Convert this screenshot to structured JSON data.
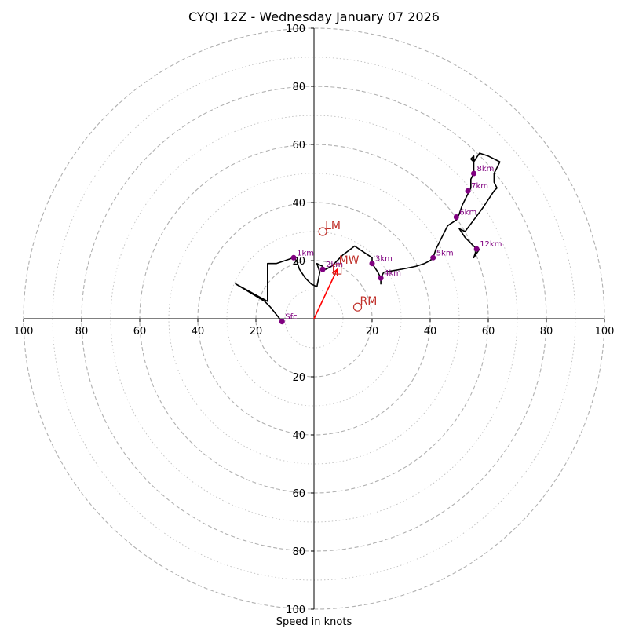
{
  "chart_data": {
    "type": "hodograph",
    "title": "CYQI 12Z - Wednesday January 07 2026",
    "xlabel": "Speed in knots",
    "units": "knots",
    "range": [
      -100,
      100
    ],
    "ring_major": [
      20,
      40,
      60,
      80,
      100
    ],
    "ring_minor": [
      10,
      30,
      50,
      70,
      90
    ],
    "x_tick_labels": [
      "100",
      "80",
      "60",
      "40",
      "20",
      "20",
      "40",
      "60",
      "80",
      "100"
    ],
    "y_tick_labels": [
      "100",
      "80",
      "60",
      "40",
      "20",
      "20",
      "40",
      "60",
      "80",
      "100"
    ],
    "trace": [
      [
        -11,
        -1
      ],
      [
        -15,
        4
      ],
      [
        -17,
        6
      ],
      [
        -27,
        12
      ],
      [
        -16,
        6
      ],
      [
        -16,
        9
      ],
      [
        -16,
        19
      ],
      [
        -15,
        19
      ],
      [
        -13,
        19
      ],
      [
        -7,
        21
      ],
      [
        -6,
        20
      ],
      [
        -5,
        17
      ],
      [
        -3,
        14
      ],
      [
        -1,
        12
      ],
      [
        1,
        11
      ],
      [
        2,
        16
      ],
      [
        1,
        19
      ],
      [
        3,
        18
      ],
      [
        3,
        17
      ],
      [
        4,
        17
      ],
      [
        6,
        18
      ],
      [
        8,
        20
      ],
      [
        10,
        22
      ],
      [
        14,
        25
      ],
      [
        17,
        23
      ],
      [
        20,
        21
      ],
      [
        20,
        19
      ],
      [
        22,
        16
      ],
      [
        23,
        14
      ],
      [
        23,
        12
      ],
      [
        23,
        14
      ],
      [
        24,
        16
      ],
      [
        30,
        17
      ],
      [
        35,
        18
      ],
      [
        38,
        19
      ],
      [
        40,
        20
      ],
      [
        41,
        21
      ],
      [
        42,
        24
      ],
      [
        44,
        28
      ],
      [
        46,
        32
      ],
      [
        49,
        34
      ],
      [
        50,
        36
      ],
      [
        51,
        39
      ],
      [
        52,
        41
      ],
      [
        53,
        43
      ],
      [
        54,
        45
      ],
      [
        54,
        48
      ],
      [
        55,
        50
      ],
      [
        55,
        52
      ],
      [
        55,
        54
      ],
      [
        54,
        55
      ],
      [
        55,
        56
      ],
      [
        55,
        54
      ],
      [
        57,
        57
      ],
      [
        60,
        56
      ],
      [
        64,
        54
      ],
      [
        63,
        52
      ],
      [
        62,
        50
      ],
      [
        62,
        47
      ],
      [
        63,
        45
      ],
      [
        62,
        44
      ],
      [
        58,
        38
      ],
      [
        55,
        34
      ],
      [
        52,
        30
      ],
      [
        50,
        31
      ],
      [
        52,
        28
      ],
      [
        54,
        26
      ],
      [
        56,
        24
      ],
      [
        55,
        21
      ],
      [
        57,
        24
      ]
    ],
    "height_markers": [
      {
        "label": "Sfc",
        "u": -11,
        "v": -1
      },
      {
        "label": "1km",
        "u": -7,
        "v": 21
      },
      {
        "label": "2km",
        "u": 3,
        "v": 17
      },
      {
        "label": "3km",
        "u": 20,
        "v": 19
      },
      {
        "label": "4km",
        "u": 23,
        "v": 14
      },
      {
        "label": "5km",
        "u": 41,
        "v": 21
      },
      {
        "label": "6km",
        "u": 49,
        "v": 35
      },
      {
        "label": "7km",
        "u": 53,
        "v": 44
      },
      {
        "label": "8km",
        "u": 55,
        "v": 50
      },
      {
        "label": "12km",
        "u": 56,
        "v": 24
      }
    ],
    "storm_motion": {
      "LM": {
        "label": "LM",
        "u": 3,
        "v": 30
      },
      "RM": {
        "label": "RM",
        "u": 15,
        "v": 4
      },
      "MW": {
        "label": "MW",
        "u": 8,
        "v": 17
      }
    },
    "colors": {
      "trace": "#000000",
      "marker": "#800080",
      "storm": "#c0302a",
      "arrow": "#ff0000",
      "ring": "#b0b0b0"
    }
  }
}
